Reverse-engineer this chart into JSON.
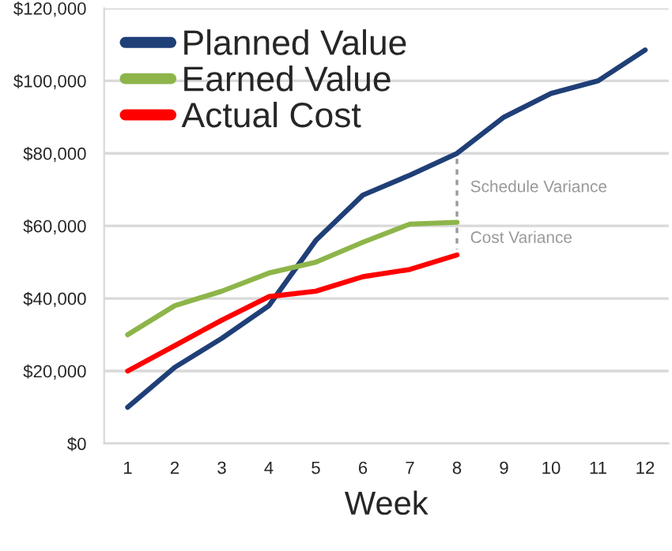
{
  "chart_data": {
    "type": "line",
    "xlabel": "Week",
    "categories": [
      "1",
      "2",
      "3",
      "4",
      "5",
      "6",
      "7",
      "8",
      "9",
      "10",
      "11",
      "12"
    ],
    "series": [
      {
        "name": "Planned Value",
        "color": "#1f3f77",
        "values": [
          10000,
          21000,
          29000,
          38000,
          56000,
          68500,
          74000,
          80000,
          90000,
          96500,
          100000,
          108500
        ]
      },
      {
        "name": "Earned Value",
        "color": "#8db54a",
        "values": [
          30000,
          38000,
          42000,
          47000,
          50000,
          55500,
          60500,
          61000,
          null,
          null,
          null,
          null
        ]
      },
      {
        "name": "Actual Cost",
        "color": "#ff0000",
        "values": [
          20000,
          27000,
          34000,
          40500,
          42000,
          46000,
          48000,
          52000,
          null,
          null,
          null,
          null
        ]
      }
    ],
    "ylim": [
      0,
      120000
    ],
    "yticks": [
      {
        "value": 0,
        "label": "$0"
      },
      {
        "value": 20000,
        "label": "$20,000"
      },
      {
        "value": 40000,
        "label": "$40,000"
      },
      {
        "value": 60000,
        "label": "$60,000"
      },
      {
        "value": 80000,
        "label": "$80,000"
      },
      {
        "value": 100000,
        "label": "$100,000"
      },
      {
        "value": 120000,
        "label": "$120,000"
      }
    ],
    "grid": "y",
    "legend": "top left",
    "marker": "none",
    "line_style": "solid",
    "annotations": [
      {
        "text": "Schedule Variance",
        "x": "8",
        "y": 80000
      },
      {
        "text": "Cost Variance",
        "x": "8",
        "y": 61000
      }
    ]
  }
}
